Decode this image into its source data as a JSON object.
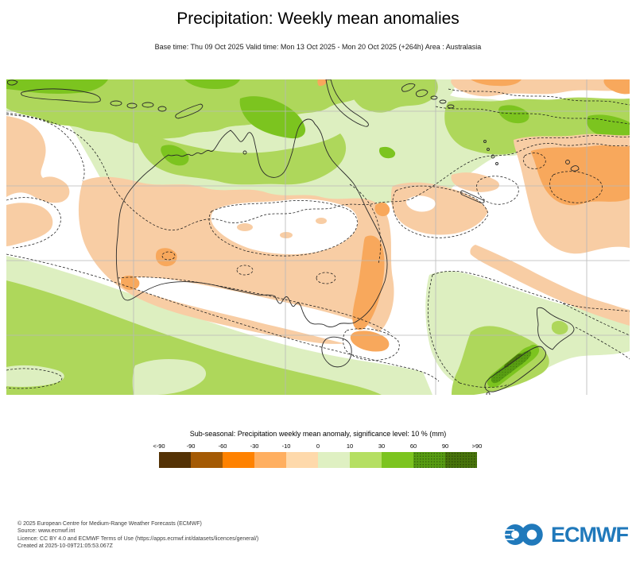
{
  "title": "Precipitation: Weekly mean anomalies",
  "subtitle": "Base time: Thu 09 Oct 2025 Valid time: Mon 13 Oct 2025 - Mon 20 Oct 2025 (+264h) Area : Australasia",
  "legend": {
    "title": "Sub-seasonal: Precipitation weekly mean anomaly, significance level: 10 % (mm)",
    "tick_labels": [
      "<-90",
      "-90",
      "-60",
      "-30",
      "-10",
      "0",
      "10",
      "30",
      "60",
      "90",
      ">90"
    ],
    "boxes": [
      {
        "range": "< -90",
        "color": "#543205",
        "stipple": false
      },
      {
        "range": "-90 to -60",
        "color": "#a45a04",
        "stipple": false
      },
      {
        "range": "-60 to -30",
        "color": "#ff8200",
        "stipple": false
      },
      {
        "range": "-30 to -10",
        "color": "#ffaf60",
        "stipple": false
      },
      {
        "range": "-10 to 0",
        "color": "#fed9ab",
        "stipple": false
      },
      {
        "range": "0 to 10",
        "color": "#dff0c2",
        "stipple": false
      },
      {
        "range": "10 to 30",
        "color": "#b5df62",
        "stipple": false
      },
      {
        "range": "30 to 60",
        "color": "#7cc41f",
        "stipple": false
      },
      {
        "range": "60 to 90",
        "color": "#579c12",
        "stipple": true
      },
      {
        "range": "> 90",
        "color": "#48740b",
        "stipple": true
      }
    ]
  },
  "map": {
    "area_label": "Australasia",
    "colors": {
      "g1": "#ddefc0",
      "g2": "#aed75b",
      "g3": "#7cc41f",
      "g4": "#579c12",
      "g5": "#48740b",
      "o1": "#f8cda4",
      "o2": "#f8a85c",
      "grid": "#b8b8b8",
      "coast": "#2a2a2a",
      "dash": "#1a1a1a"
    }
  },
  "footer": {
    "lines": [
      "© 2025 European Centre for Medium-Range Weather Forecasts (ECMWF)",
      "Source: www.ecmwf.int",
      "Licence: CC BY 4.0 and ECMWF Terms of Use (https://apps.ecmwf.int/datasets/licences/general/)",
      "Created at 2025-10-09T21:05:53.067Z"
    ],
    "logo_text": "ECMWF",
    "logo_color": "#2079bb"
  }
}
